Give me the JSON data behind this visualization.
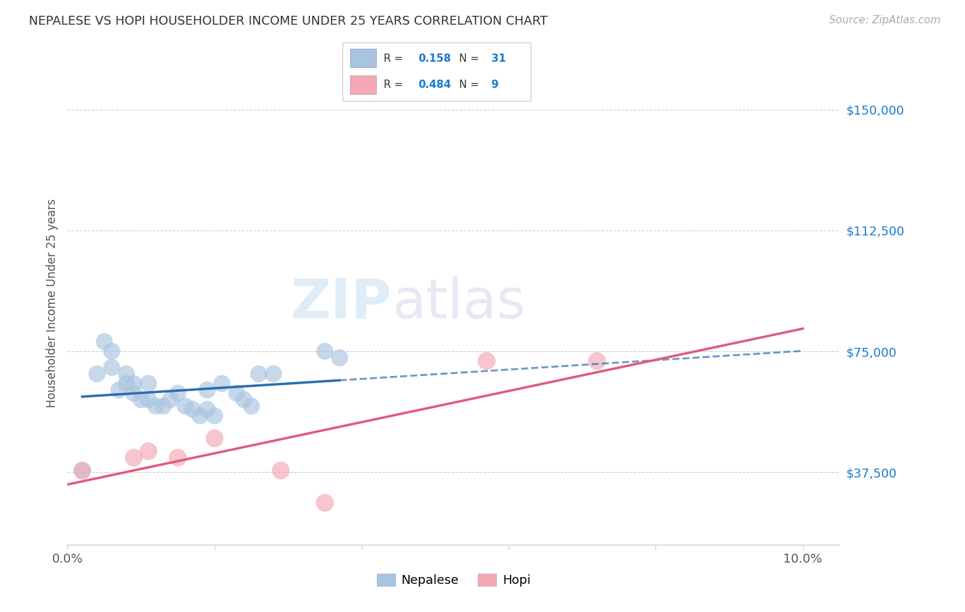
{
  "title": "NEPALESE VS HOPI HOUSEHOLDER INCOME UNDER 25 YEARS CORRELATION CHART",
  "source": "Source: ZipAtlas.com",
  "ylabel": "Householder Income Under 25 years",
  "xlim": [
    0.0,
    0.105
  ],
  "ylim": [
    15000,
    165000
  ],
  "yticks": [
    37500,
    75000,
    112500,
    150000
  ],
  "ytick_labels": [
    "$37,500",
    "$75,000",
    "$112,500",
    "$150,000"
  ],
  "nepalese_R": "0.158",
  "nepalese_N": "31",
  "hopi_R": "0.484",
  "hopi_N": "9",
  "nepalese_color": "#a8c4e0",
  "hopi_color": "#f4a7b5",
  "nepalese_line_color": "#2b6cb0",
  "hopi_line_color": "#e05a7a",
  "background_color": "#ffffff",
  "grid_color": "#cccccc",
  "nepalese_x": [
    0.002,
    0.004,
    0.005,
    0.006,
    0.006,
    0.007,
    0.008,
    0.008,
    0.009,
    0.009,
    0.01,
    0.011,
    0.011,
    0.012,
    0.013,
    0.014,
    0.015,
    0.016,
    0.017,
    0.018,
    0.019,
    0.019,
    0.02,
    0.021,
    0.023,
    0.024,
    0.025,
    0.026,
    0.028,
    0.035,
    0.037
  ],
  "nepalese_y": [
    38000,
    68000,
    78000,
    70000,
    75000,
    63000,
    65000,
    68000,
    62000,
    65000,
    60000,
    60000,
    65000,
    58000,
    58000,
    60000,
    62000,
    58000,
    57000,
    55000,
    57000,
    63000,
    55000,
    65000,
    62000,
    60000,
    58000,
    68000,
    68000,
    75000,
    73000
  ],
  "hopi_x": [
    0.002,
    0.009,
    0.011,
    0.015,
    0.02,
    0.029,
    0.035,
    0.057,
    0.072
  ],
  "hopi_y": [
    38000,
    42000,
    44000,
    42000,
    48000,
    38000,
    28000,
    72000,
    72000
  ],
  "watermark_zip": "ZIP",
  "watermark_atlas": "atlas"
}
